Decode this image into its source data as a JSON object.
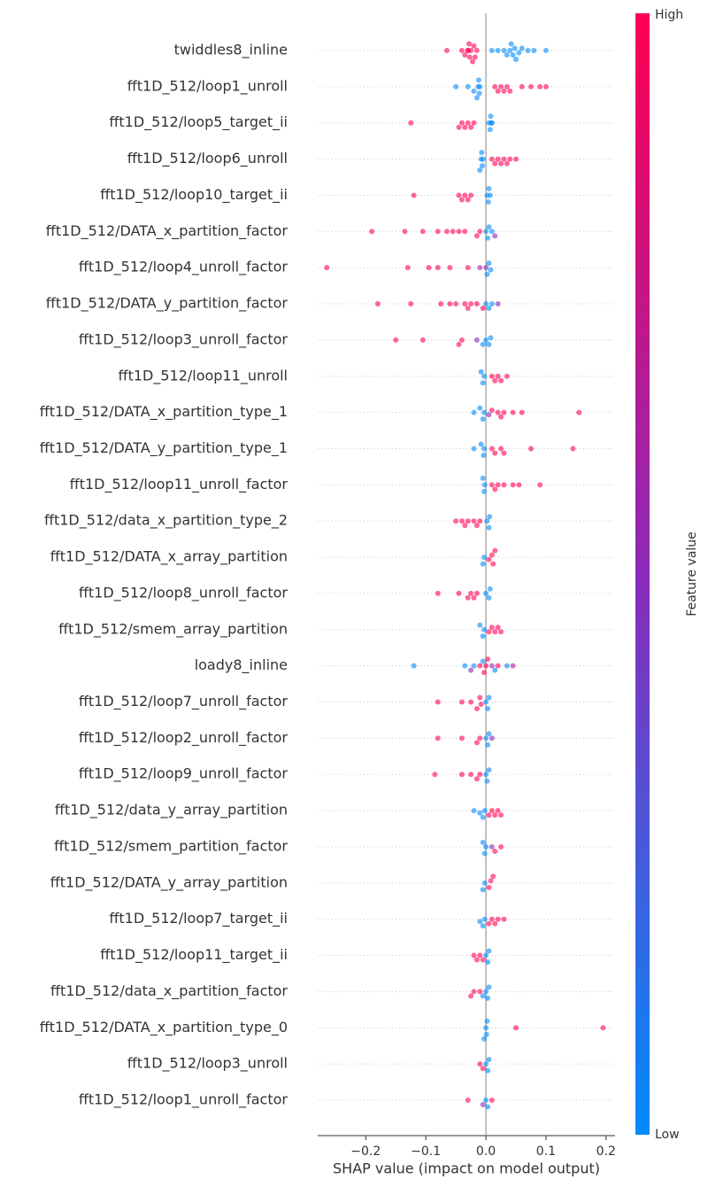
{
  "chart_data": {
    "type": "beeswarm",
    "x_label": "SHAP value (impact on model output)",
    "colorbar_label": "Feature value",
    "colorbar_high": "High",
    "colorbar_low": "Low",
    "low_color": "#008bfb",
    "mid_color": "#8b2ab8",
    "high_color": "#ff0052",
    "xlim": [
      -0.28,
      0.215
    ],
    "xticks": [
      {
        "value": -0.2,
        "label": "−0.2"
      },
      {
        "value": -0.1,
        "label": "−0.1"
      },
      {
        "value": 0,
        "label": "0.0"
      },
      {
        "value": 0.1,
        "label": "0.1"
      },
      {
        "value": 0.2,
        "label": "0.2"
      }
    ],
    "categories": [
      "twiddles8_inline",
      "fft1D_512/loop1_unroll",
      "fft1D_512/loop5_target_ii",
      "fft1D_512/loop6_unroll",
      "fft1D_512/loop10_target_ii",
      "fft1D_512/DATA_x_partition_factor",
      "fft1D_512/loop4_unroll_factor",
      "fft1D_512/DATA_y_partition_factor",
      "fft1D_512/loop3_unroll_factor",
      "fft1D_512/loop11_unroll",
      "fft1D_512/DATA_x_partition_type_1",
      "fft1D_512/DATA_y_partition_type_1",
      "fft1D_512/loop11_unroll_factor",
      "fft1D_512/data_x_partition_type_2",
      "fft1D_512/DATA_x_array_partition",
      "fft1D_512/loop8_unroll_factor",
      "fft1D_512/smem_array_partition",
      "loady8_inline",
      "fft1D_512/loop7_unroll_factor",
      "fft1D_512/loop2_unroll_factor",
      "fft1D_512/loop9_unroll_factor",
      "fft1D_512/data_y_array_partition",
      "fft1D_512/smem_partition_factor",
      "fft1D_512/DATA_y_array_partition",
      "fft1D_512/loop7_target_ii",
      "fft1D_512/loop11_target_ii",
      "fft1D_512/data_x_partition_factor",
      "fft1D_512/DATA_x_partition_type_0",
      "fft1D_512/loop3_unroll",
      "fft1D_512/loop1_unroll_factor"
    ],
    "shap_values": [
      [
        -0.065,
        -0.04,
        -0.035,
        -0.03,
        -0.028,
        -0.025,
        -0.022,
        -0.02,
        -0.018,
        -0.015,
        -0.03,
        -0.027,
        0.01,
        0.02,
        0.03,
        0.035,
        0.04,
        0.045,
        0.05,
        0.055,
        0.06,
        0.07,
        0.08,
        0.1,
        0.042,
        0.048
      ],
      [
        -0.05,
        -0.03,
        -0.02,
        -0.015,
        -0.012,
        -0.01,
        -0.013,
        -0.011,
        0.015,
        0.02,
        0.025,
        0.03,
        0.035,
        0.04,
        0.06,
        0.075,
        0.09,
        0.1
      ],
      [
        -0.125,
        -0.045,
        -0.04,
        -0.035,
        -0.03,
        -0.025,
        -0.02,
        0.005,
        0.008,
        0.01,
        0.009,
        0.007
      ],
      [
        -0.01,
        -0.008,
        -0.006,
        -0.005,
        -0.007,
        0.01,
        0.015,
        0.02,
        0.025,
        0.03,
        0.035,
        0.04,
        0.05
      ],
      [
        -0.12,
        -0.045,
        -0.04,
        -0.035,
        -0.03,
        -0.025,
        0.002,
        0.005,
        0.007,
        0.004
      ],
      [
        -0.19,
        -0.135,
        -0.105,
        -0.08,
        -0.065,
        -0.055,
        -0.045,
        -0.035,
        -0.015,
        -0.01,
        0,
        0.005,
        0.01,
        0.003,
        0.015
      ],
      [
        -0.265,
        -0.13,
        -0.095,
        -0.08,
        -0.06,
        -0.03,
        -0.01,
        0,
        0.005,
        0.008,
        0.002
      ],
      [
        -0.18,
        -0.125,
        -0.075,
        -0.06,
        -0.05,
        -0.035,
        -0.03,
        -0.025,
        -0.015,
        -0.005,
        0,
        0.005,
        0.01,
        0.02
      ],
      [
        -0.15,
        -0.105,
        -0.045,
        -0.04,
        -0.015,
        -0.005,
        0,
        0.005,
        0.008
      ],
      [
        -0.008,
        -0.005,
        -0.003,
        0.01,
        0.015,
        0.02,
        0.025,
        0.035
      ],
      [
        -0.02,
        -0.01,
        -0.005,
        -0.003,
        0.01,
        0.02,
        0.025,
        0.03,
        0.045,
        0.06,
        0.155,
        0.005
      ],
      [
        -0.02,
        -0.008,
        -0.004,
        -0.003,
        0.01,
        0.015,
        0.025,
        0.03,
        0.075,
        0.145
      ],
      [
        -0.005,
        -0.003,
        -0.002,
        0.01,
        0.015,
        0.02,
        0.03,
        0.045,
        0.055,
        0.09
      ],
      [
        -0.05,
        -0.04,
        -0.035,
        -0.03,
        -0.02,
        -0.015,
        -0.01,
        0.002,
        0.005,
        0.006
      ],
      [
        -0.005,
        -0.003,
        0.005,
        0.01,
        0.012,
        0.015
      ],
      [
        -0.08,
        -0.045,
        -0.03,
        -0.025,
        -0.02,
        -0.015,
        0,
        0.005,
        0.007
      ],
      [
        -0.01,
        -0.005,
        -0.003,
        0.005,
        0.01,
        0.015,
        0.02,
        0.025
      ],
      [
        -0.12,
        -0.035,
        -0.02,
        -0.005,
        0.015,
        0.035,
        -0.025,
        0.01,
        0.045,
        -0.01,
        -0.003,
        0,
        0.003,
        0.02
      ],
      [
        -0.08,
        -0.04,
        -0.025,
        -0.015,
        -0.01,
        -0.008,
        0,
        0.003,
        0.005
      ],
      [
        -0.08,
        -0.04,
        -0.015,
        -0.01,
        0.01,
        0,
        0.003,
        0.005
      ],
      [
        -0.085,
        -0.04,
        -0.025,
        -0.015,
        -0.01,
        0,
        0.002,
        0.005
      ],
      [
        -0.02,
        -0.01,
        -0.005,
        -0.002,
        0.005,
        0.01,
        0.015,
        0.02,
        0.025
      ],
      [
        -0.005,
        -0.002,
        0,
        0.01,
        0.015,
        0.025
      ],
      [
        -0.005,
        -0.002,
        0.005,
        0.008,
        0.012
      ],
      [
        -0.01,
        -0.005,
        -0.002,
        0.005,
        0.01,
        0.015,
        0.02,
        0.03
      ],
      [
        -0.02,
        -0.015,
        -0.01,
        -0.005,
        0,
        0.003,
        0.005
      ],
      [
        -0.025,
        -0.02,
        -0.01,
        -0.005,
        0,
        0.003,
        0.005
      ],
      [
        -0.003,
        0,
        0.001,
        0.002,
        0.05,
        0.195
      ],
      [
        -0.01,
        -0.005,
        0,
        0.003,
        0.005
      ],
      [
        -0.03,
        -0.005,
        0,
        0.003,
        0.01
      ]
    ],
    "feature_values": [
      [
        1,
        1,
        1,
        1,
        1,
        1,
        1,
        1,
        1,
        1,
        1,
        1,
        0,
        0,
        0,
        0,
        0,
        0,
        0,
        0,
        0,
        0,
        0,
        0,
        0,
        0
      ],
      [
        0,
        0,
        0,
        0,
        0,
        0,
        0,
        0,
        1,
        1,
        1,
        1,
        1,
        1,
        1,
        1,
        1,
        1
      ],
      [
        1,
        1,
        1,
        1,
        1,
        1,
        1,
        0,
        0,
        0,
        0,
        0
      ],
      [
        0,
        0,
        0,
        0,
        0,
        1,
        1,
        1,
        1,
        1,
        1,
        1,
        1
      ],
      [
        1,
        1,
        1,
        1,
        1,
        1,
        0,
        0,
        0,
        0
      ],
      [
        1,
        1,
        1,
        1,
        1,
        1,
        1,
        1,
        1,
        1,
        0,
        0,
        0,
        0,
        0.5
      ],
      [
        1,
        1,
        1,
        1,
        1,
        1,
        0.6,
        0.5,
        0,
        0,
        0
      ],
      [
        1,
        1,
        1,
        1,
        1,
        1,
        1,
        1,
        1,
        1,
        0,
        0,
        0,
        0.5
      ],
      [
        1,
        1,
        1,
        1,
        0.5,
        0,
        0,
        0,
        0
      ],
      [
        0,
        0,
        0,
        1,
        1,
        1,
        1,
        1
      ],
      [
        0,
        0,
        0,
        0,
        1,
        1,
        1,
        1,
        1,
        1,
        1,
        0.5
      ],
      [
        0,
        0,
        0,
        0,
        1,
        1,
        1,
        1,
        1,
        1
      ],
      [
        0,
        0,
        0,
        1,
        1,
        1,
        1,
        1,
        1,
        1
      ],
      [
        1,
        1,
        1,
        1,
        1,
        1,
        1,
        0,
        0,
        0
      ],
      [
        0,
        0,
        1,
        1,
        1,
        1
      ],
      [
        1,
        1,
        1,
        1,
        1,
        1,
        0,
        0,
        0
      ],
      [
        0,
        0,
        0,
        1,
        1,
        1,
        1,
        1
      ],
      [
        0,
        0,
        0,
        0,
        0,
        0,
        0.5,
        0.55,
        0.7,
        1,
        1,
        1,
        1,
        1
      ],
      [
        1,
        1,
        1,
        1,
        1,
        1,
        0,
        0,
        0
      ],
      [
        1,
        1,
        1,
        1,
        0.5,
        0,
        0,
        0
      ],
      [
        1,
        1,
        1,
        1,
        1,
        0,
        0,
        0
      ],
      [
        0,
        0,
        0,
        0,
        1,
        1,
        1,
        1,
        1
      ],
      [
        0,
        0,
        0,
        0.5,
        1,
        1
      ],
      [
        0,
        0,
        1,
        1,
        1
      ],
      [
        0,
        0,
        0,
        1,
        1,
        1,
        1,
        1
      ],
      [
        1,
        1,
        1,
        1,
        0,
        0,
        0
      ],
      [
        1,
        1,
        1,
        0,
        0,
        0,
        0
      ],
      [
        0,
        0,
        0,
        0,
        1,
        1
      ],
      [
        1,
        1,
        0,
        0,
        0
      ],
      [
        1,
        0.5,
        0,
        0,
        1
      ]
    ]
  }
}
